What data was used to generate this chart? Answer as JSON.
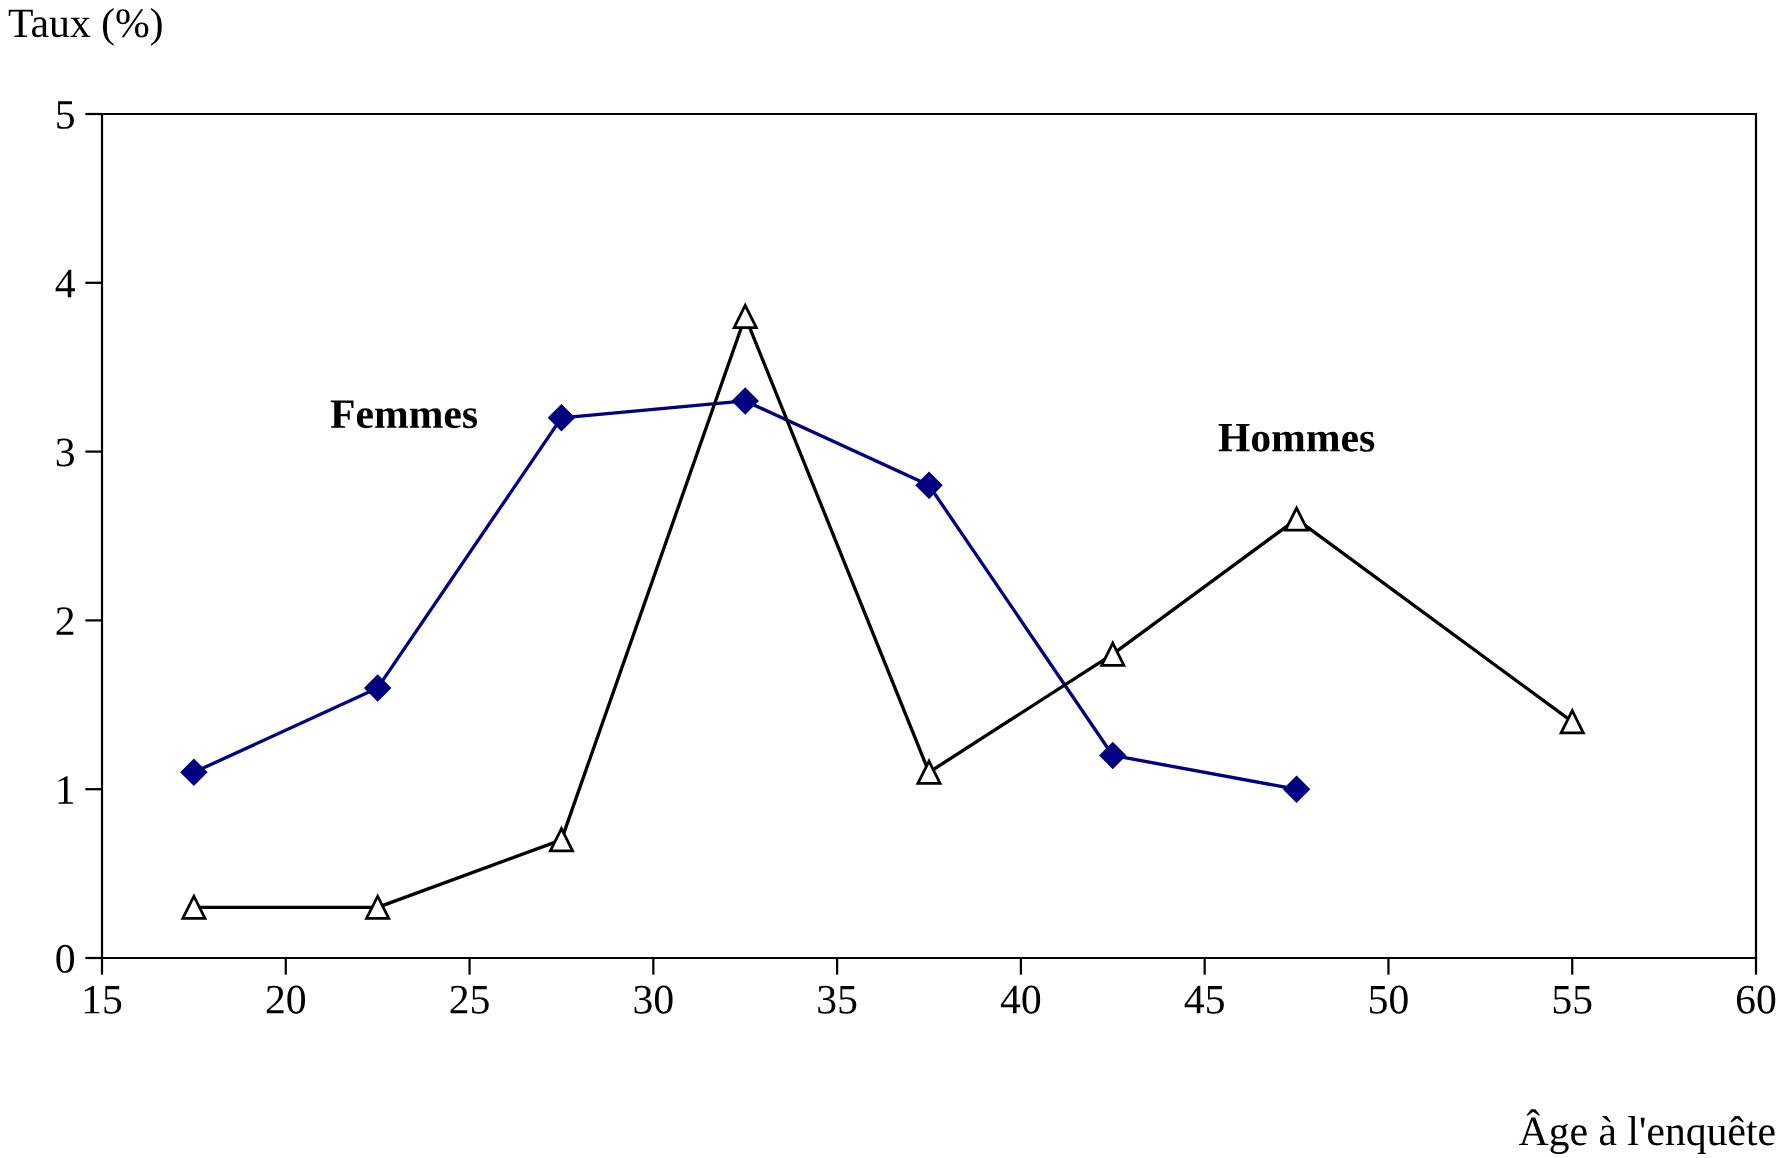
{
  "chart_data": {
    "type": "line",
    "xlabel": "Âge à l'enquête",
    "ylabel": "Taux (%)",
    "xlim": [
      15,
      60
    ],
    "xticks": [
      15,
      20,
      25,
      30,
      35,
      40,
      45,
      50,
      55,
      60
    ],
    "ylim": [
      0,
      5
    ],
    "yticks": [
      0,
      1,
      2,
      3,
      4,
      5
    ],
    "grid": false,
    "legend": false,
    "series": [
      {
        "name": "Femmes",
        "color": "#000080",
        "marker": "diamond",
        "x": [
          17.5,
          22.5,
          27.5,
          32.5,
          37.5,
          42.5,
          47.5
        ],
        "values": [
          1.1,
          1.6,
          3.2,
          3.3,
          2.8,
          1.2,
          1.0
        ]
      },
      {
        "name": "Hommes",
        "color": "#000000",
        "marker": "triangle",
        "x": [
          17.5,
          22.5,
          27.5,
          32.5,
          37.5,
          42.5,
          47.5,
          55
        ],
        "values": [
          0.3,
          0.3,
          0.7,
          3.8,
          1.1,
          1.8,
          2.6,
          1.4
        ]
      }
    ]
  }
}
